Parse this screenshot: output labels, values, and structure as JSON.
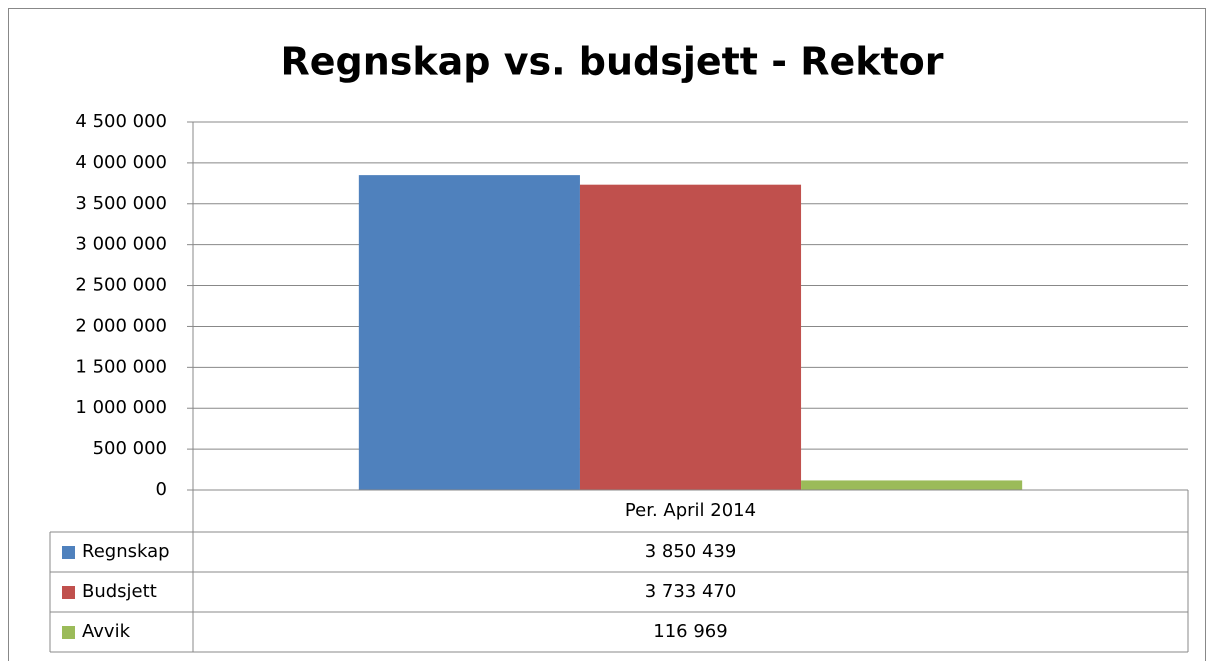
{
  "chart_data": {
    "type": "bar",
    "title": "Regnskap vs. budsjett - Rektor",
    "categories": [
      "Per. April 2014"
    ],
    "series": [
      {
        "name": "Regnskap",
        "color": "#4f81bd",
        "values": [
          3850439
        ],
        "value_labels": [
          "3 850 439"
        ]
      },
      {
        "name": "Budsjett",
        "color": "#c0504d",
        "values": [
          3733470
        ],
        "value_labels": [
          "3 733 470"
        ]
      },
      {
        "name": "Avvik",
        "color": "#9bbb59",
        "values": [
          116969
        ],
        "value_labels": [
          "116 969"
        ]
      }
    ],
    "ylim": [
      0,
      4500000
    ],
    "yticks": [
      0,
      {
        "value": 500000,
        "label": "500 000"
      },
      {
        "value": 1000000,
        "label": "1 000 000"
      },
      {
        "value": 1500000,
        "label": "1 500 000"
      },
      {
        "value": 2000000,
        "label": "2 000 000"
      },
      {
        "value": 2500000,
        "label": "2 500 000"
      },
      {
        "value": 3000000,
        "label": "3 000 000"
      },
      {
        "value": 3500000,
        "label": "3 500 000"
      },
      {
        "value": 4000000,
        "label": "4 000 000"
      },
      {
        "value": 4500000,
        "label": "4 500 000"
      }
    ],
    "grid": true,
    "data_table": true
  }
}
